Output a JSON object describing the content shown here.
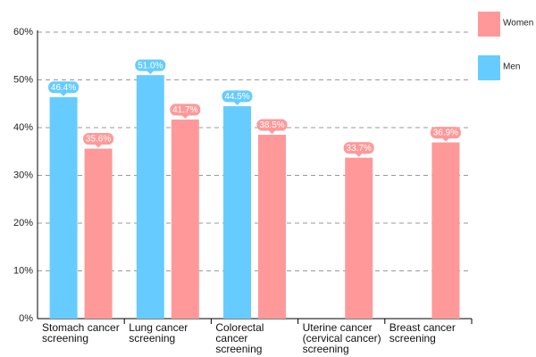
{
  "chart_data": {
    "type": "bar",
    "categories": [
      "Stomach cancer screening",
      "Lung cancer screening",
      "Colorectal cancer screening",
      "Uterine cancer (cervical cancer) screening",
      "Breast cancer screening"
    ],
    "series": [
      {
        "name": "Men",
        "color": "#66ccff",
        "values": [
          46.4,
          51.0,
          44.5,
          null,
          null
        ],
        "value_labels": [
          "46.4%",
          "51.0%",
          "44.5%",
          null,
          null
        ]
      },
      {
        "name": "Women",
        "color": "#ff9999",
        "values": [
          35.6,
          41.7,
          38.5,
          33.7,
          36.9
        ],
        "value_labels": [
          "35.6%",
          "41.7%",
          "38.5%",
          "33.7%",
          "36.9%"
        ]
      }
    ],
    "ylim": [
      0,
      60
    ],
    "yticks": [
      {
        "value": 0,
        "label": "0%"
      },
      {
        "value": 10,
        "label": "10%"
      },
      {
        "value": 20,
        "label": "20%"
      },
      {
        "value": 30,
        "label": "30%"
      },
      {
        "value": 40,
        "label": "40%"
      },
      {
        "value": 50,
        "label": "50%"
      },
      {
        "value": 60,
        "label": "60%"
      }
    ],
    "grid": true,
    "legend": "top-right"
  }
}
